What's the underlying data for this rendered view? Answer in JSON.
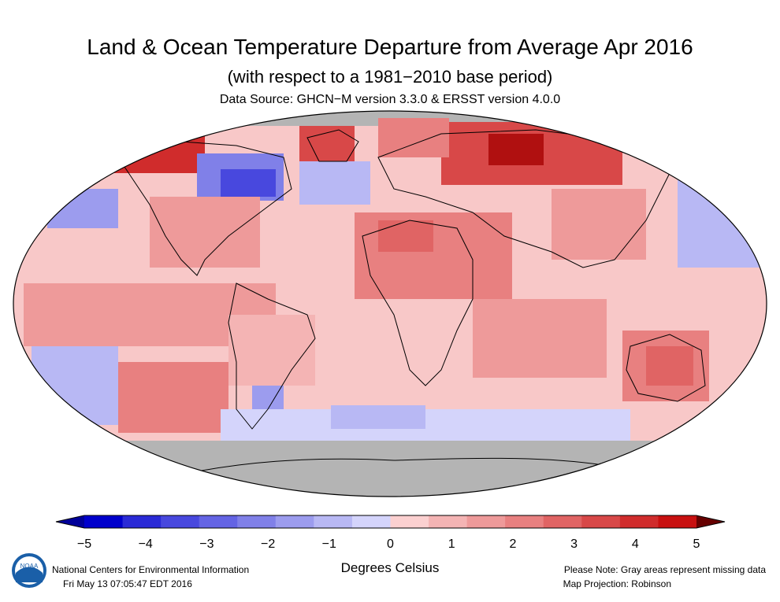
{
  "header": {
    "title": "Land & Ocean Temperature Departure from Average Apr 2016",
    "subtitle": "(with respect to a 1981−2010 base period)",
    "source": "Data Source: GHCN−M version 3.3.0 & ERSST version 4.0.0"
  },
  "legend": {
    "ticks": [
      "−5",
      "−4",
      "−3",
      "−2",
      "−1",
      "0",
      "1",
      "2",
      "3",
      "4",
      "5"
    ],
    "units": "Degrees Celsius",
    "colors": [
      "#0000cc",
      "#2a2ad6",
      "#4848de",
      "#6464e4",
      "#8080e8",
      "#9c9cee",
      "#b8b8f4",
      "#d4d4fb",
      "#fbd0d0",
      "#f4b4b4",
      "#ee9a9a",
      "#e88080",
      "#e06464",
      "#d84848",
      "#d02c2c",
      "#c81010"
    ],
    "low_end_color": "#000099",
    "high_end_color": "#660000",
    "missing_color": "#b4b4b4"
  },
  "footer": {
    "org": "National Centers for Environmental Information",
    "timestamp": "Fri May 13 07:05:47 EDT 2016",
    "note": "Please Note: Gray areas represent missing data",
    "projection": "Map Projection: Robinson"
  },
  "map": {
    "projection": "Robinson",
    "background_anomaly_label": "0 to 1",
    "logo_icon": "noaa-logo"
  }
}
